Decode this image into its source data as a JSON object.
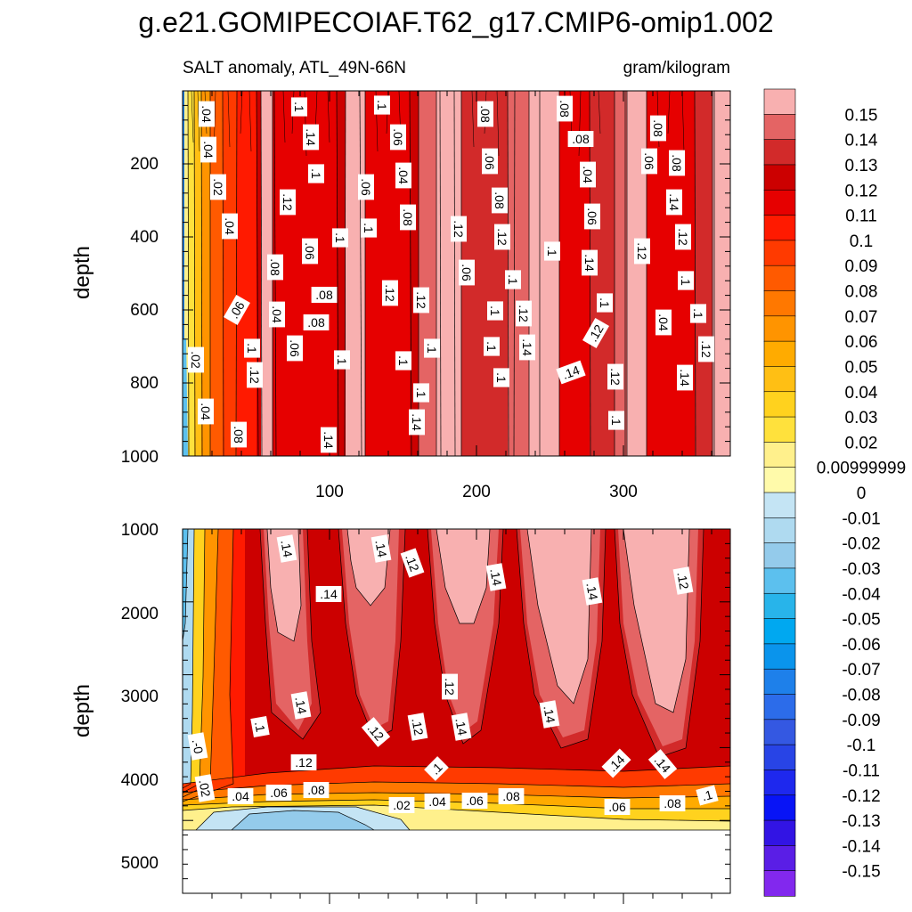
{
  "chart_data": {
    "type": "heatmap",
    "title": "g.e21.GOMIPECOIAF.T62_g17.CMIP6-omip1.002",
    "subtitle_left": "SALT anomaly, ATL_49N-66N",
    "subtitle_right": "gram/kilogram",
    "colorbar": {
      "labels": [
        "0.15",
        "0.14",
        "0.13",
        "0.12",
        "0.11",
        "0.1",
        "0.09",
        "0.08",
        "0.07",
        "0.06",
        "0.05",
        "0.04",
        "0.03",
        "0.02",
        "0.00999999",
        "0",
        "-0.01",
        "-0.02",
        "-0.03",
        "-0.04",
        "-0.05",
        "-0.06",
        "-0.07",
        "-0.08",
        "-0.09",
        "-0.1",
        "-0.11",
        "-0.12",
        "-0.13",
        "-0.14",
        "-0.15"
      ],
      "colors": [
        "#f8b0b0",
        "#e46464",
        "#d22a2a",
        "#cc0000",
        "#e60000",
        "#ff1a00",
        "#ff3a00",
        "#ff5a00",
        "#ff7800",
        "#ff9400",
        "#ffab00",
        "#ffbf14",
        "#ffd21e",
        "#ffe13c",
        "#fff08c",
        "#fffaaa",
        "#c4e4f4",
        "#afdaf0",
        "#94cbeb",
        "#5cc0ee",
        "#28b4ea",
        "#00a8f0",
        "#0a94ec",
        "#1e80ea",
        "#2c6cea",
        "#3458e2",
        "#2844e6",
        "#1e28ee",
        "#0814f6",
        "#3214e4",
        "#5a1ee6",
        "#8228ee"
      ]
    },
    "top_panel": {
      "ylabel": "depth",
      "y_ticks": [
        "200",
        "400",
        "600",
        "800",
        "1000"
      ],
      "ylim": [
        0,
        1000
      ],
      "x_ticks": [
        "100",
        "200",
        "300"
      ],
      "xlim": [
        0,
        372
      ],
      "contour_labels": [
        ".04",
        ".04",
        ".02",
        ".04",
        ".06",
        ".02",
        ".04",
        ".08",
        ".1",
        ".14",
        ".1",
        ".12",
        ".08",
        ".04",
        ".06",
        ".1",
        ".08",
        ".08",
        ".06",
        ".1",
        ".12",
        ".1",
        ".14",
        ".12",
        ".1",
        ".06",
        ".04",
        ".06",
        ".1",
        ".08",
        ".12",
        ".1",
        ".1",
        ".1",
        ".14",
        ".12",
        ".06",
        ".08",
        ".06",
        ".08",
        ".12",
        ".1",
        ".1",
        ".12",
        ".14",
        ".1",
        ".1",
        ".08",
        ".04",
        ".08",
        ".06",
        ".14",
        ".1",
        ".1",
        ".12",
        ".12",
        ".14",
        ".1",
        ".12",
        ".04",
        ".08",
        ".06",
        ".08",
        ".14",
        ".12",
        ".1",
        ".1",
        ".12",
        ".14"
      ]
    },
    "bottom_panel": {
      "ylabel": "depth",
      "y_ticks": [
        "1000",
        "2000",
        "3000",
        "4000",
        "5000"
      ],
      "ylim": [
        1000,
        5400
      ],
      "contour_labels": [
        ".14",
        ".14",
        ".12",
        ".14",
        ".14",
        ".14",
        ".12",
        ".12",
        ".14",
        ".14",
        ".1",
        ".12",
        ".14",
        ".12",
        ".14",
        ".12",
        ".14",
        ".1",
        ".-0",
        ".02",
        ".04",
        ".06",
        ".08",
        ".1",
        ".02",
        ".04",
        ".06",
        ".08",
        ".06",
        ".08",
        ".1"
      ]
    }
  }
}
